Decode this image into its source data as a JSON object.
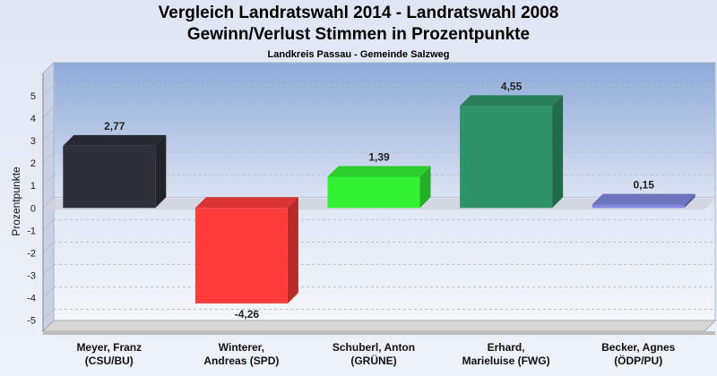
{
  "chart_data": {
    "type": "bar",
    "title": "Vergleich Landratswahl 2014 - Landratswahl 2008",
    "subtitle": "Gewinn/Verlust Stimmen in Prozentpunkte",
    "caption": "Landkreis Passau - Gemeinde Salzweg",
    "ylabel": "Prozentpunkte",
    "ylim": [
      -5.5,
      6
    ],
    "yticks": [
      5,
      4,
      3,
      2,
      1,
      0,
      -1,
      -2,
      -3,
      -4,
      -5
    ],
    "grid": true,
    "categories": [
      [
        "Meyer, Franz",
        "(CSU/BU)"
      ],
      [
        "Winterer,",
        "Andreas (SPD)"
      ],
      [
        "Schuberl, Anton",
        "(GRÜNE)"
      ],
      [
        "Erhard,",
        "Marieluise (FWG)"
      ],
      [
        "Becker, Agnes",
        "(ÖDP/PU)"
      ]
    ],
    "values": [
      2.77,
      -4.26,
      1.39,
      4.55,
      0.15
    ],
    "value_labels": [
      "2,77",
      "-4,26",
      "1,39",
      "4,55",
      "0,15"
    ],
    "colors": [
      "#2e3038",
      "#ff3c3c",
      "#33f233",
      "#2e9468",
      "#8088e0"
    ]
  }
}
